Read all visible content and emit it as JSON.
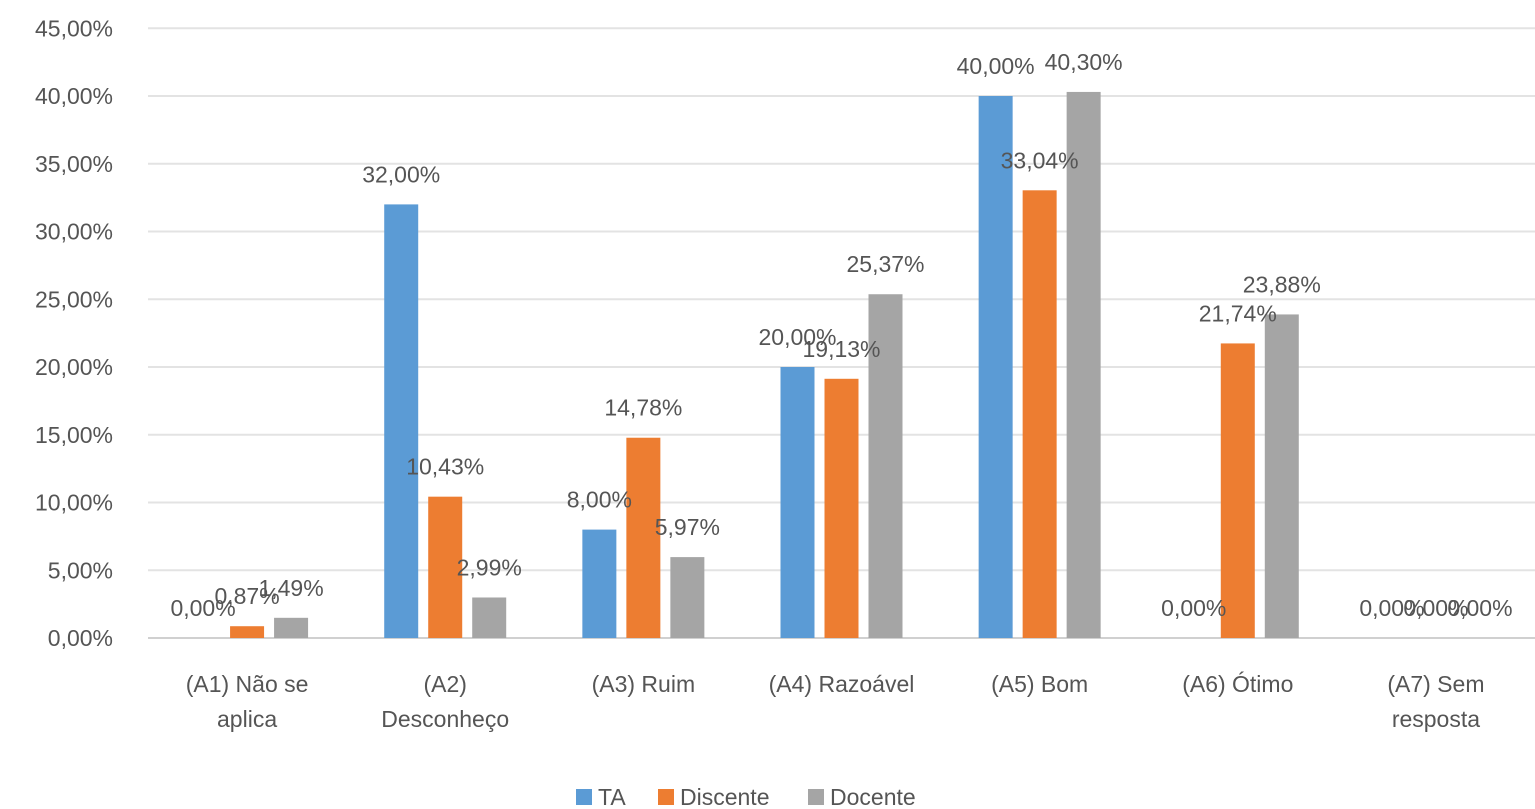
{
  "chart_data": {
    "type": "bar",
    "categories": [
      [
        "(A1) Não se",
        "aplica"
      ],
      [
        "(A2)",
        "Desconheço"
      ],
      [
        "(A3) Ruim"
      ],
      [
        "(A4) Razoável"
      ],
      [
        "(A5) Bom"
      ],
      [
        "(A6) Ótimo"
      ],
      [
        "(A7) Sem",
        "resposta"
      ]
    ],
    "series": [
      {
        "name": "TA",
        "color": "#5b9bd5",
        "values": [
          0.0,
          32.0,
          8.0,
          20.0,
          40.0,
          0.0,
          0.0
        ],
        "labels": [
          "0,00%",
          "32,00%",
          "8,00%",
          "20,00%",
          "40,00%",
          "0,00%",
          "0,00%"
        ]
      },
      {
        "name": "Discente",
        "color": "#ed7d31",
        "values": [
          0.87,
          10.43,
          14.78,
          19.13,
          33.04,
          21.74,
          0.0
        ],
        "labels": [
          "0,87%",
          "10,43%",
          "14,78%",
          "19,13%",
          "33,04%",
          "21,74%",
          "0,00%"
        ]
      },
      {
        "name": "Docente",
        "color": "#a5a5a5",
        "values": [
          1.49,
          2.99,
          5.97,
          25.37,
          40.3,
          23.88,
          0.0
        ],
        "labels": [
          "1,49%",
          "2,99%",
          "5,97%",
          "25,37%",
          "40,30%",
          "23,88%",
          "0,00%"
        ]
      }
    ],
    "yticks": [
      "0,00%",
      "5,00%",
      "10,00%",
      "15,00%",
      "20,00%",
      "25,00%",
      "30,00%",
      "35,00%",
      "40,00%",
      "45,00%"
    ],
    "ylim": [
      0,
      45
    ],
    "grid": true,
    "legend_position": "bottom",
    "title": "",
    "xlabel": "",
    "ylabel": ""
  }
}
